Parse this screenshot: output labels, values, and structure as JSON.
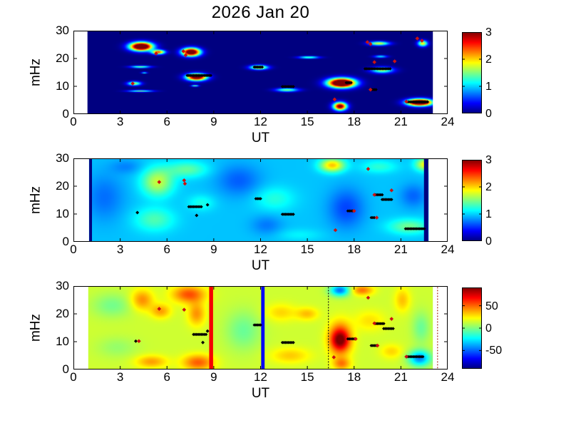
{
  "title": "2026 Jan 20",
  "figure": {
    "background": "#ffffff",
    "axis_color": "#000000"
  },
  "chart_data": {
    "type": "heatmap",
    "colormap": "jet",
    "title": "2026 Jan 20",
    "xlabel": "UT",
    "ylabel": "mHz",
    "xlim": [
      0,
      24
    ],
    "ylim": [
      0,
      30
    ],
    "x_ticks": [
      0,
      3,
      6,
      9,
      12,
      15,
      18,
      21,
      24
    ],
    "y_ticks": [
      0,
      10,
      20,
      30
    ],
    "marker_colors": {
      "black": "#000000",
      "red": "#cc1111"
    },
    "panels": [
      {
        "name": "top-spectrogram",
        "clim": [
          0,
          3
        ],
        "colorbar_ticks": [
          0,
          1,
          2,
          3
        ],
        "x_range": [
          0.9,
          23.05
        ],
        "base": 0.0,
        "blobs": [
          [
            4.35,
            24.3,
            0.5,
            1.05,
            4.2
          ],
          [
            5.45,
            22.3,
            0.3,
            0.55,
            2.4
          ],
          [
            7.55,
            22.3,
            0.4,
            1.0,
            3.8
          ],
          [
            4.3,
            17.0,
            0.45,
            0.28,
            1.5
          ],
          [
            4.55,
            14.9,
            0.13,
            0.18,
            1.2
          ],
          [
            7.9,
            13.3,
            0.45,
            0.85,
            3.6
          ],
          [
            3.9,
            11.0,
            0.3,
            0.5,
            1.7
          ],
          [
            4.3,
            8.3,
            0.55,
            0.25,
            1.4
          ],
          [
            7.8,
            10.2,
            0.16,
            0.22,
            1.4
          ],
          [
            11.9,
            16.8,
            0.4,
            0.55,
            2.1
          ],
          [
            15.1,
            20.4,
            0.45,
            0.28,
            1.5
          ],
          [
            13.7,
            8.7,
            0.5,
            0.45,
            1.5
          ],
          [
            17.2,
            11.2,
            0.6,
            1.15,
            4.4
          ],
          [
            17.1,
            2.8,
            0.3,
            1.0,
            3.2
          ],
          [
            19.6,
            25.4,
            0.45,
            0.5,
            1.8
          ],
          [
            19.7,
            20.7,
            0.3,
            0.3,
            1.1
          ],
          [
            19.8,
            15.8,
            0.5,
            0.75,
            1.6
          ],
          [
            22.4,
            25.4,
            0.22,
            0.75,
            1.9
          ],
          [
            22.2,
            4.2,
            0.55,
            0.85,
            4.2
          ]
        ],
        "stripes": [],
        "dashed_lines": [],
        "black_runs": [
          [
            7.3,
            8.9,
            13.9
          ],
          [
            11.6,
            12.2,
            16.9
          ],
          [
            13.4,
            14.2,
            9.9
          ],
          [
            17.5,
            17.9,
            11.3
          ],
          [
            18.7,
            20.4,
            16.3
          ],
          [
            19.1,
            19.5,
            8.8
          ],
          [
            21.4,
            22.8,
            4.4
          ]
        ],
        "black_points": [],
        "red_points": [
          [
            5.3,
            21.8
          ],
          [
            7.05,
            22.6
          ],
          [
            7.2,
            21.2
          ],
          [
            3.8,
            11.0
          ],
          [
            16.75,
            5.3
          ],
          [
            18.85,
            25.9
          ],
          [
            19.05,
            25.2
          ],
          [
            19.3,
            18.7
          ],
          [
            20.6,
            19.0
          ],
          [
            19.05,
            8.8
          ],
          [
            22.05,
            27.2
          ],
          [
            22.35,
            26.4
          ],
          [
            21.35,
            4.5
          ]
        ]
      },
      {
        "name": "middle-spectrogram",
        "clim": [
          0,
          3
        ],
        "colorbar_ticks": [
          0,
          1,
          2,
          3
        ],
        "x_range": [
          1.0,
          22.78
        ],
        "base": 0.95,
        "blobs": [
          [
            5.4,
            21.5,
            0.7,
            3.5,
            0.75
          ],
          [
            5.2,
            8.0,
            0.9,
            3.0,
            0.4
          ],
          [
            7.3,
            26.0,
            0.9,
            2.0,
            0.45
          ],
          [
            2.0,
            16.0,
            0.9,
            6.0,
            -0.25
          ],
          [
            3.4,
            27.0,
            0.7,
            1.8,
            -0.18
          ],
          [
            10.6,
            22.0,
            1.0,
            4.0,
            -0.3
          ],
          [
            12.9,
            15.5,
            0.9,
            3.0,
            0.28
          ],
          [
            12.4,
            6.0,
            0.7,
            2.5,
            -0.22
          ],
          [
            16.6,
            27.5,
            0.55,
            1.7,
            1.1
          ],
          [
            17.5,
            12.0,
            0.8,
            5.0,
            -0.38
          ],
          [
            19.6,
            27.0,
            0.8,
            1.6,
            0.3
          ],
          [
            22.6,
            27.8,
            0.45,
            1.6,
            0.95
          ],
          [
            21.5,
            5.5,
            0.9,
            1.9,
            0.5
          ],
          [
            21.8,
            16.5,
            0.6,
            3.0,
            -0.28
          ],
          [
            14.5,
            2.5,
            1.0,
            1.5,
            0.15
          ],
          [
            8.2,
            14.0,
            0.6,
            2.0,
            0.25
          ]
        ],
        "stripes": [
          [
            1.1,
            0.18,
            0
          ],
          [
            22.62,
            0.28,
            0
          ]
        ],
        "dashed_lines": [],
        "black_runs": [
          [
            7.4,
            8.3,
            12.6
          ],
          [
            11.7,
            12.1,
            15.5
          ],
          [
            13.4,
            14.2,
            9.9
          ],
          [
            17.6,
            18.0,
            11.1
          ],
          [
            19.4,
            19.9,
            16.9
          ],
          [
            19.8,
            20.5,
            15.2
          ],
          [
            19.1,
            19.4,
            8.7
          ],
          [
            21.3,
            22.6,
            4.7
          ]
        ],
        "black_points": [
          [
            4.1,
            10.5
          ],
          [
            8.6,
            13.3
          ],
          [
            7.9,
            9.5
          ]
        ],
        "red_points": [
          [
            5.5,
            21.5
          ],
          [
            7.1,
            22.1
          ],
          [
            7.15,
            20.9
          ],
          [
            18.9,
            26.2
          ],
          [
            19.3,
            16.9
          ],
          [
            20.4,
            18.5
          ],
          [
            18.0,
            11.1
          ],
          [
            19.45,
            8.7
          ],
          [
            16.8,
            4.2
          ]
        ]
      },
      {
        "name": "bottom-difference-map",
        "clim": [
          -91,
          91
        ],
        "colorbar_ticks": [
          -50,
          0,
          50
        ],
        "x_range": [
          0.95,
          23.05
        ],
        "base": 14,
        "blobs": [
          [
            4.4,
            25.0,
            0.5,
            2.6,
            30
          ],
          [
            5.6,
            21.0,
            0.45,
            1.8,
            26
          ],
          [
            7.4,
            27.0,
            0.75,
            2.2,
            40
          ],
          [
            7.9,
            20.0,
            0.4,
            3.0,
            28
          ],
          [
            8.0,
            2.5,
            0.7,
            2.0,
            38
          ],
          [
            5.0,
            2.8,
            0.7,
            1.6,
            26
          ],
          [
            2.5,
            23.0,
            0.9,
            3.0,
            -16
          ],
          [
            2.8,
            8.0,
            0.9,
            2.6,
            -10
          ],
          [
            10.9,
            14.0,
            0.8,
            5.0,
            -18
          ],
          [
            13.3,
            20.5,
            0.7,
            2.2,
            16
          ],
          [
            15.0,
            20.0,
            0.5,
            1.6,
            20
          ],
          [
            13.9,
            5.0,
            0.9,
            2.0,
            18
          ],
          [
            17.1,
            28.5,
            0.45,
            1.5,
            -62
          ],
          [
            17.1,
            11.0,
            0.5,
            4.0,
            58
          ],
          [
            17.1,
            10.5,
            0.38,
            2.2,
            28
          ],
          [
            17.2,
            2.0,
            0.4,
            1.6,
            30
          ],
          [
            18.5,
            28.5,
            0.5,
            1.3,
            34
          ],
          [
            19.0,
            17.5,
            0.7,
            2.6,
            14
          ],
          [
            21.1,
            25.0,
            0.35,
            3.0,
            20
          ],
          [
            22.2,
            4.0,
            0.5,
            2.0,
            -58
          ],
          [
            22.3,
            15.0,
            0.4,
            4.0,
            -18
          ],
          [
            20.4,
            6.5,
            0.5,
            1.8,
            16
          ]
        ],
        "stripes": [
          [
            8.83,
            0.25,
            70
          ],
          [
            12.15,
            0.22,
            -70
          ]
        ],
        "dashed_lines": [
          {
            "x": 16.35,
            "color": "#1a1a1a"
          },
          {
            "x": 23.35,
            "color": "#aa3322"
          }
        ],
        "black_runs": [
          [
            7.7,
            8.6,
            12.6
          ],
          [
            11.6,
            12.1,
            16.0
          ],
          [
            13.4,
            14.2,
            9.7
          ],
          [
            17.6,
            18.1,
            11.0
          ],
          [
            19.4,
            20.0,
            16.5
          ],
          [
            19.9,
            20.6,
            14.7
          ],
          [
            19.1,
            19.5,
            8.6
          ],
          [
            21.4,
            22.5,
            4.6
          ]
        ],
        "black_points": [
          [
            4.0,
            10.2
          ],
          [
            8.6,
            13.8
          ],
          [
            8.3,
            9.7
          ]
        ],
        "red_points": [
          [
            5.5,
            21.8
          ],
          [
            7.1,
            21.5
          ],
          [
            4.2,
            10.2
          ],
          [
            18.9,
            25.8
          ],
          [
            19.3,
            16.6
          ],
          [
            20.4,
            18.2
          ],
          [
            18.1,
            11.0
          ],
          [
            19.5,
            8.6
          ],
          [
            16.7,
            4.4
          ],
          [
            21.35,
            4.6
          ]
        ]
      }
    ]
  }
}
